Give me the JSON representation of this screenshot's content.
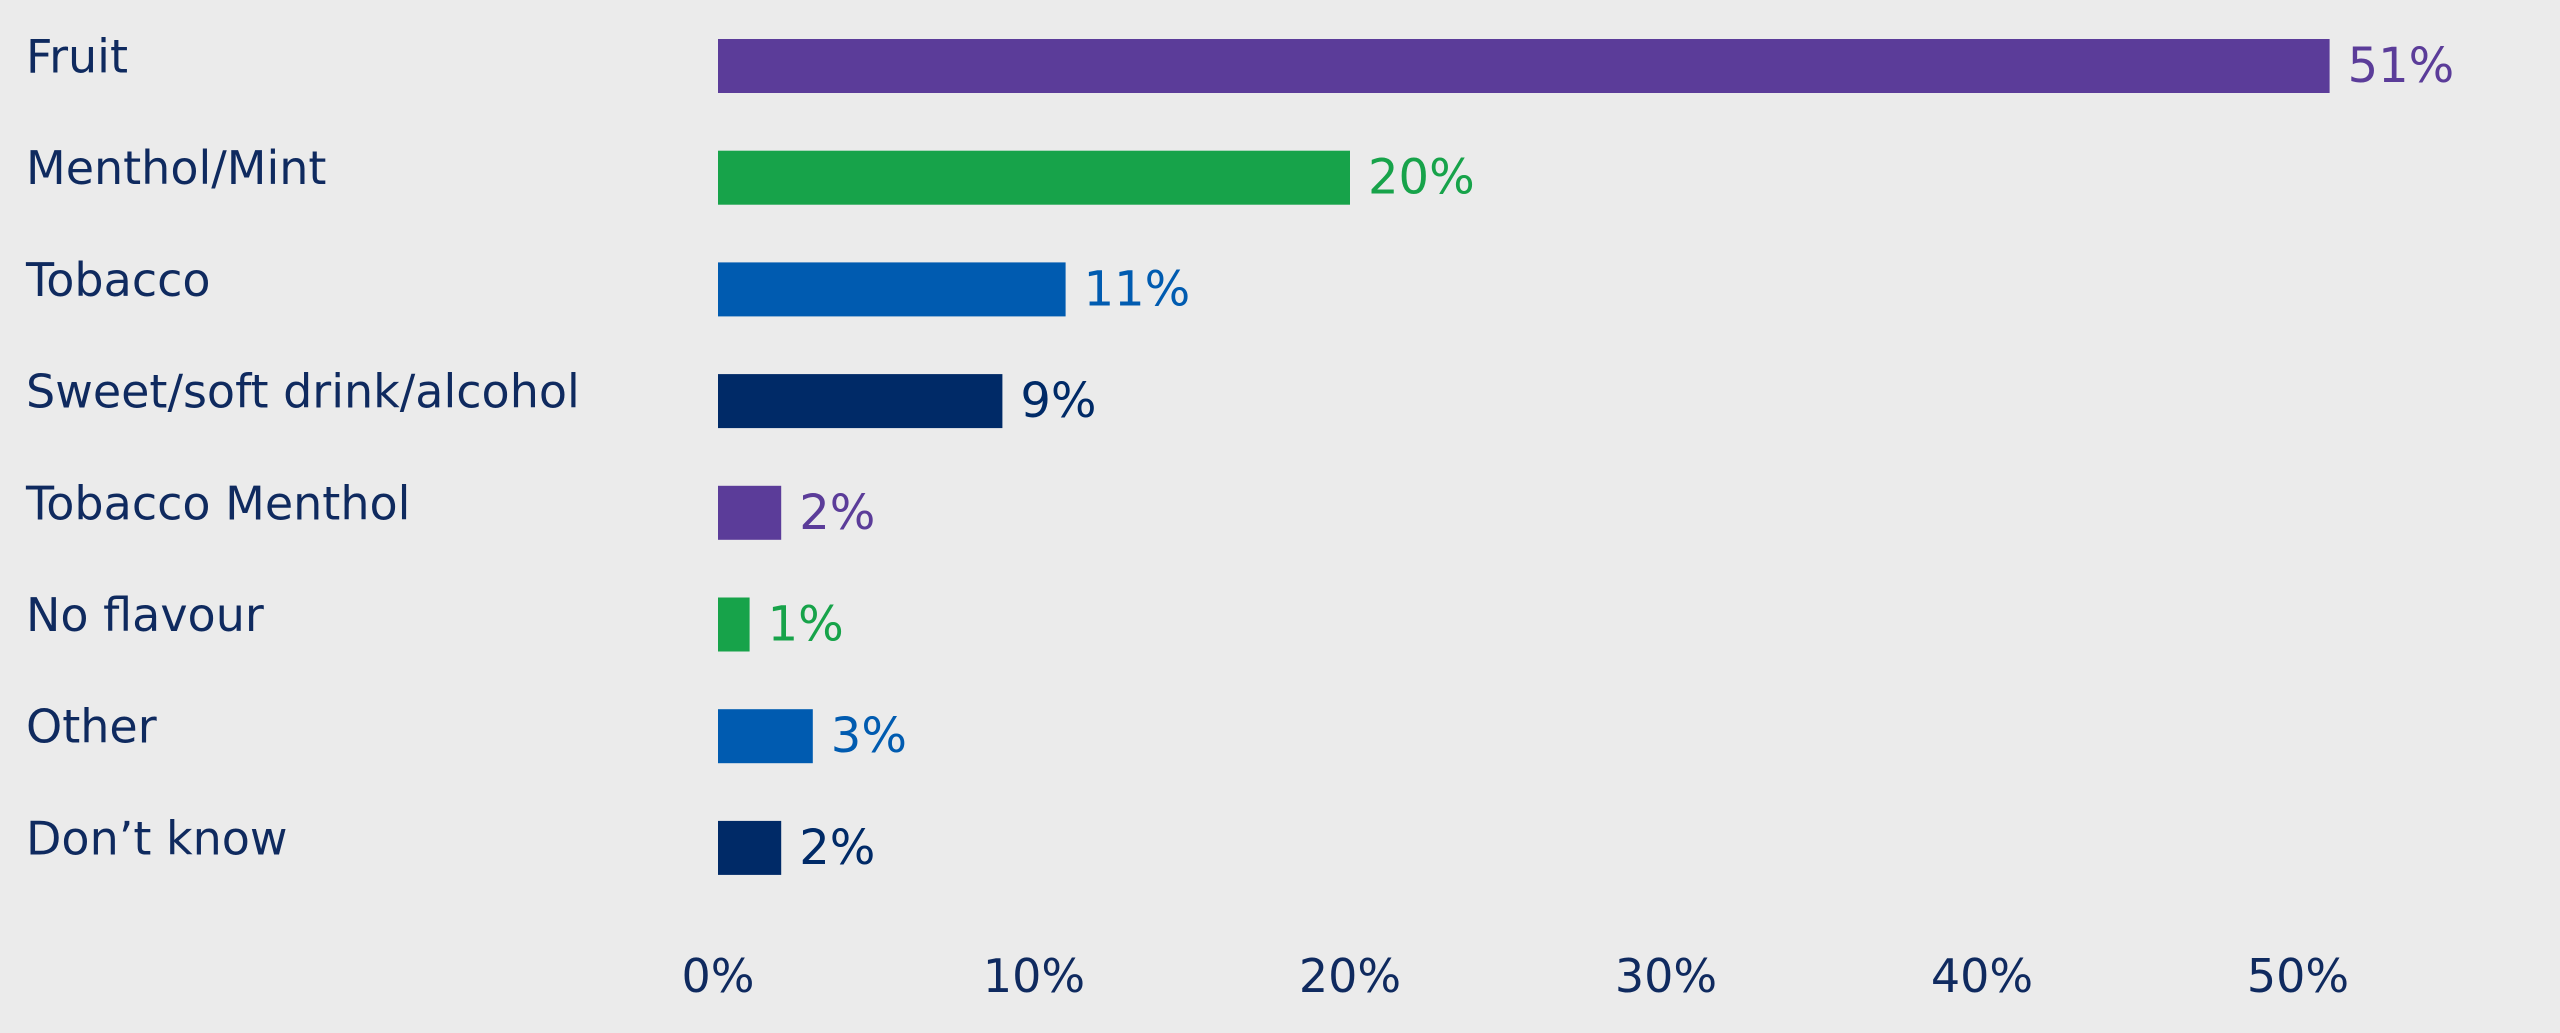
{
  "chart_data": {
    "type": "bar",
    "orientation": "horizontal",
    "categories": [
      "Fruit",
      "Menthol/Mint",
      "Tobacco",
      "Sweet/soft drink/alcohol",
      "Tobacco Menthol",
      "No flavour",
      "Other",
      "Don’t know"
    ],
    "values": [
      51,
      20,
      11,
      9,
      2,
      1,
      3,
      2
    ],
    "value_labels": [
      "51%",
      "20%",
      "11%",
      "9%",
      "2%",
      "1%",
      "3%",
      "2%"
    ],
    "colors": [
      "#5b3c99",
      "#17a34a",
      "#005bb0",
      "#002a67",
      "#5b3c99",
      "#17a34a",
      "#005bb0",
      "#002a67"
    ],
    "xlim": [
      0,
      55
    ],
    "x_ticks": [
      0,
      10,
      20,
      30,
      40,
      50
    ],
    "x_tick_labels": [
      "0%",
      "10%",
      "20%",
      "30%",
      "40%",
      "50%"
    ],
    "grid": false,
    "legend": "none",
    "background": "#ebebeb",
    "text_color": "#0f2a5f"
  }
}
